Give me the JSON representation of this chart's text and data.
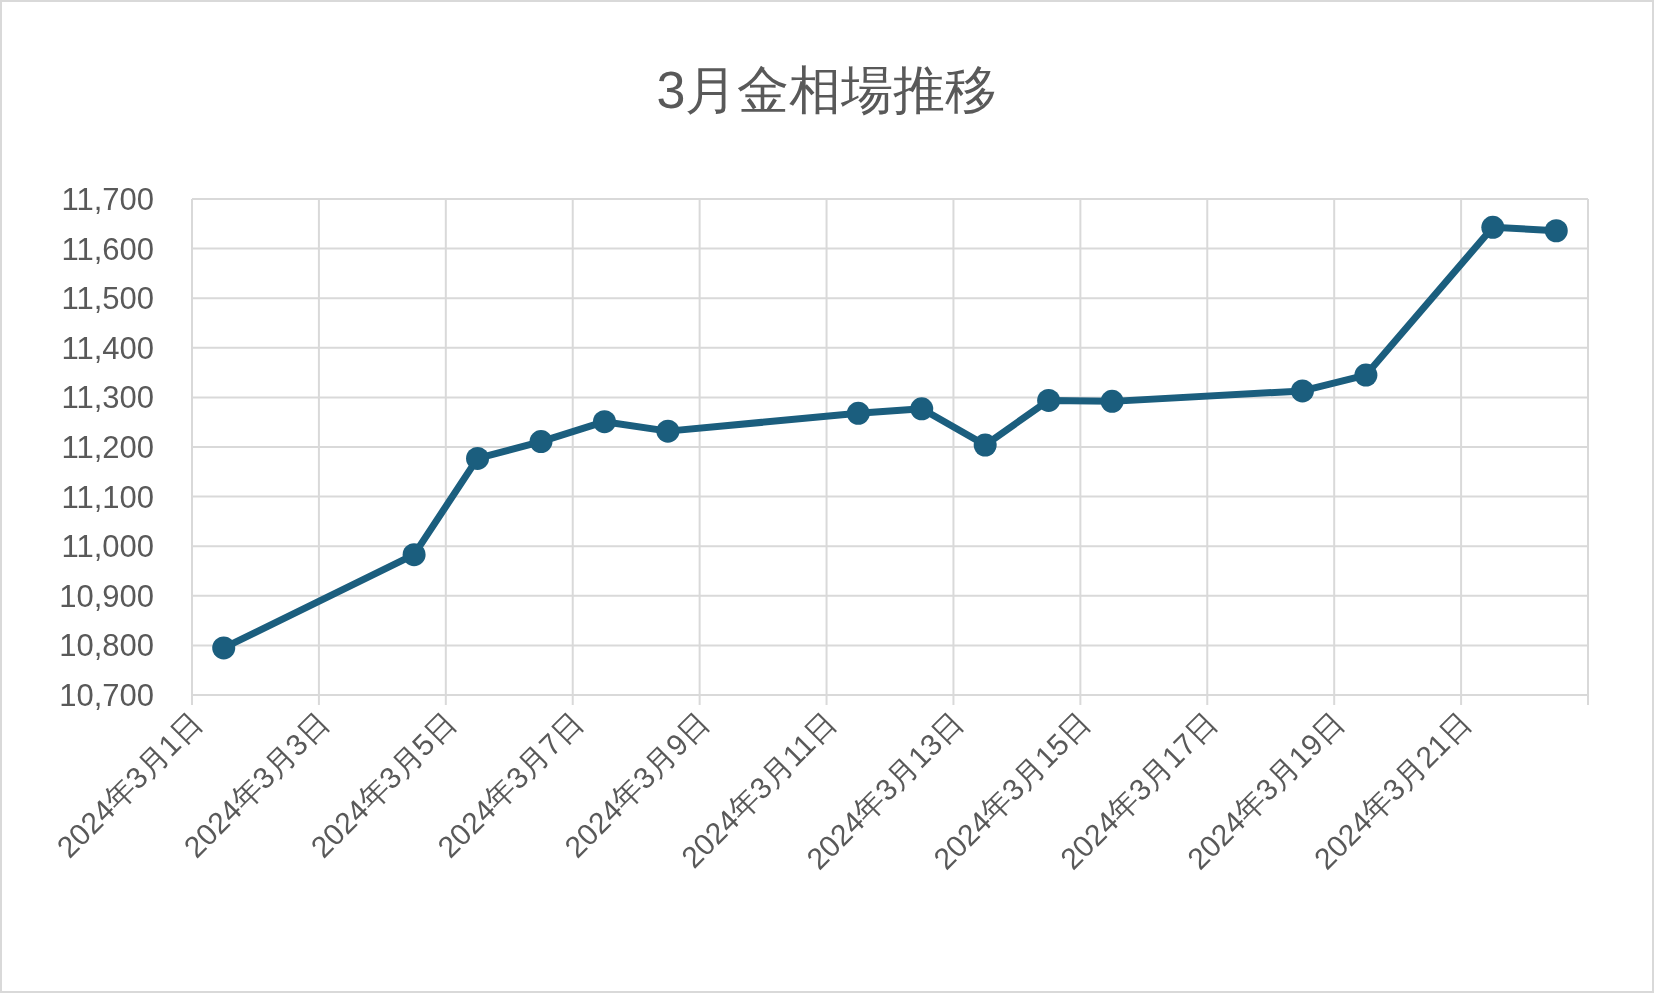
{
  "chart_data": {
    "type": "line",
    "title": "3月金相場推移",
    "x": [
      "2024-03-01T12:00",
      "2024-03-04T12:00",
      "2024-03-05T12:00",
      "2024-03-06T12:00",
      "2024-03-07T12:00",
      "2024-03-08T12:00",
      "2024-03-11T12:00",
      "2024-03-12T12:00",
      "2024-03-13T12:00",
      "2024-03-14T12:00",
      "2024-03-15T12:00",
      "2024-03-18T12:00",
      "2024-03-19T12:00",
      "2024-03-21T12:00",
      "2024-03-22T12:00"
    ],
    "series": [
      {
        "color": "#1b5e7e",
        "values": [
          10795,
          10983,
          11177,
          11211,
          11251,
          11232,
          11268,
          11277,
          11204,
          11294,
          11292,
          11313,
          11345,
          11643,
          11636
        ]
      }
    ],
    "xlim": [
      "2024-03-01",
      "2024-03-23"
    ],
    "xticks": [
      {
        "value": "2024-03-01",
        "label": "2024年3月1日"
      },
      {
        "value": "2024-03-03",
        "label": "2024年3月3日"
      },
      {
        "value": "2024-03-05",
        "label": "2024年3月5日"
      },
      {
        "value": "2024-03-07",
        "label": "2024年3月7日"
      },
      {
        "value": "2024-03-09",
        "label": "2024年3月9日"
      },
      {
        "value": "2024-03-11",
        "label": "2024年3月11日"
      },
      {
        "value": "2024-03-13",
        "label": "2024年3月13日"
      },
      {
        "value": "2024-03-15",
        "label": "2024年3月15日"
      },
      {
        "value": "2024-03-17",
        "label": "2024年3月17日"
      },
      {
        "value": "2024-03-19",
        "label": "2024年3月19日"
      },
      {
        "value": "2024-03-21",
        "label": "2024年3月21日"
      }
    ],
    "ylim": [
      10700,
      11700
    ],
    "yticks": [
      {
        "value": 10700,
        "label": "10,700"
      },
      {
        "value": 10800,
        "label": "10,800"
      },
      {
        "value": 10900,
        "label": "10,900"
      },
      {
        "value": 11000,
        "label": "11,000"
      },
      {
        "value": 11100,
        "label": "11,100"
      },
      {
        "value": 11200,
        "label": "11,200"
      },
      {
        "value": 11300,
        "label": "11,300"
      },
      {
        "value": 11400,
        "label": "11,400"
      },
      {
        "value": 11500,
        "label": "11,500"
      },
      {
        "value": 11600,
        "label": "11,600"
      },
      {
        "value": 11700,
        "label": "11,700"
      }
    ],
    "grid": true,
    "marker": "circle"
  }
}
